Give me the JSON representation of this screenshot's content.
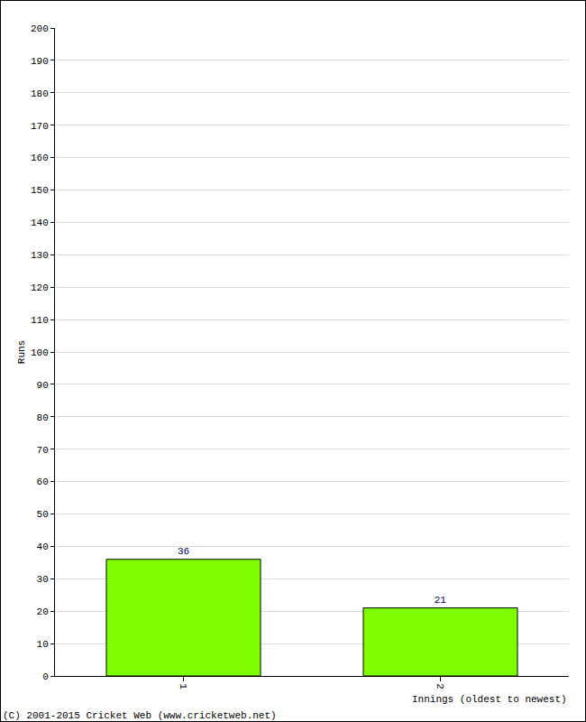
{
  "chart_data": {
    "type": "bar",
    "x_label": "Innings (oldest to newest)",
    "y_label": "Runs",
    "categories": [
      "1",
      "2"
    ],
    "values": [
      36,
      21
    ],
    "color": "#80ff00",
    "ylim": [
      0,
      200
    ],
    "yticks": [
      0,
      10,
      20,
      30,
      40,
      50,
      60,
      70,
      80,
      90,
      100,
      110,
      120,
      130,
      140,
      150,
      160,
      170,
      180,
      190,
      200
    ],
    "grid": true,
    "data_labels": true,
    "annotations": [
      "(C) 2001-2015 Cricket Web (www.cricketweb.net)"
    ]
  }
}
